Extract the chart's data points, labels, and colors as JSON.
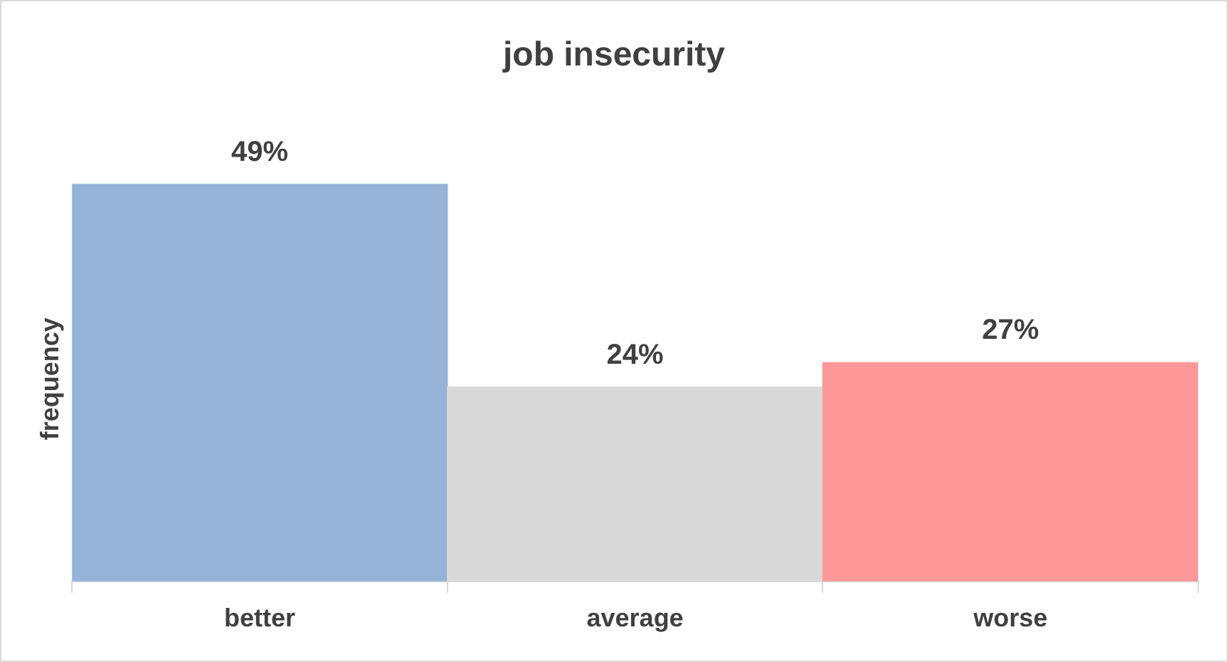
{
  "chart_data": {
    "type": "bar",
    "title": "job insecurity",
    "ylabel": "frequency",
    "categories": [
      "better",
      "average",
      "worse"
    ],
    "values": [
      49,
      24,
      27
    ],
    "colors": [
      "#95b3d7",
      "#d9d9d9",
      "#ff9999"
    ],
    "value_labels": [
      "49%",
      "24%",
      "27%"
    ],
    "grid": false,
    "legend": false
  }
}
